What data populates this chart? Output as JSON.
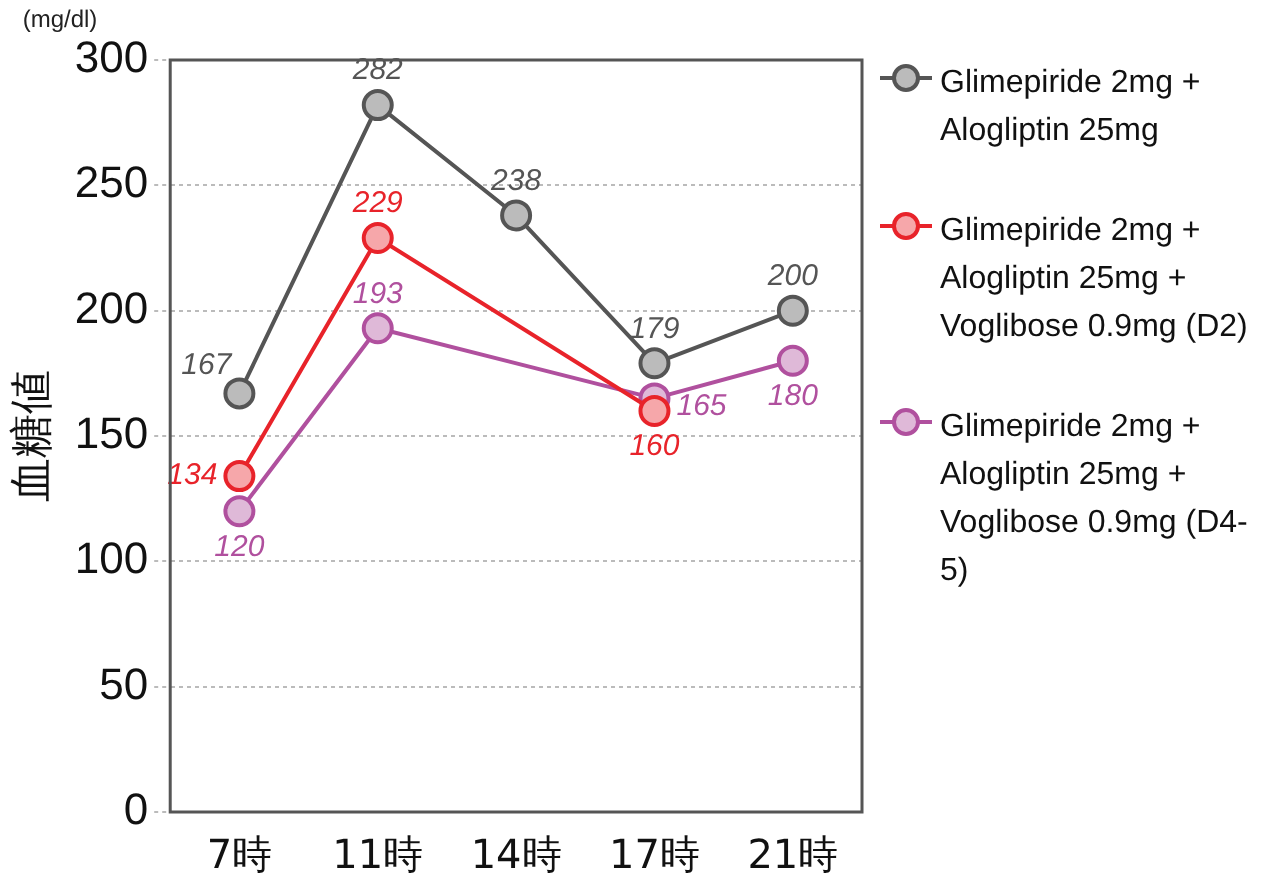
{
  "chart_data": {
    "type": "line",
    "ylabel": "血糖値",
    "annotations": [
      "(mg/dl)"
    ],
    "categories": [
      "7時",
      "11時",
      "14時",
      "17時",
      "21時"
    ],
    "series": [
      {
        "name": "Glimepiride 2mg + Alogliptin 25mg",
        "color": "#555555",
        "values": [
          167,
          282,
          238,
          179,
          200
        ]
      },
      {
        "name": "Glimepiride 2mg + Alogliptin 25mg + Voglibose 0.9mg (D2)",
        "color": "#e8232a",
        "values": [
          134,
          229,
          null,
          160,
          null
        ]
      },
      {
        "name": "Glimepiride 2mg + Alogliptin 25mg + Voglibose 0.9mg (D4-5)",
        "color": "#b0509e",
        "values": [
          120,
          193,
          null,
          165,
          180
        ]
      }
    ],
    "ylim": [
      0,
      300
    ],
    "yticks": [
      0,
      50,
      100,
      150,
      200,
      250,
      300
    ],
    "grid": "y",
    "legend": "right",
    "marker": "circle",
    "line_style": "solid",
    "data_labels": true
  }
}
